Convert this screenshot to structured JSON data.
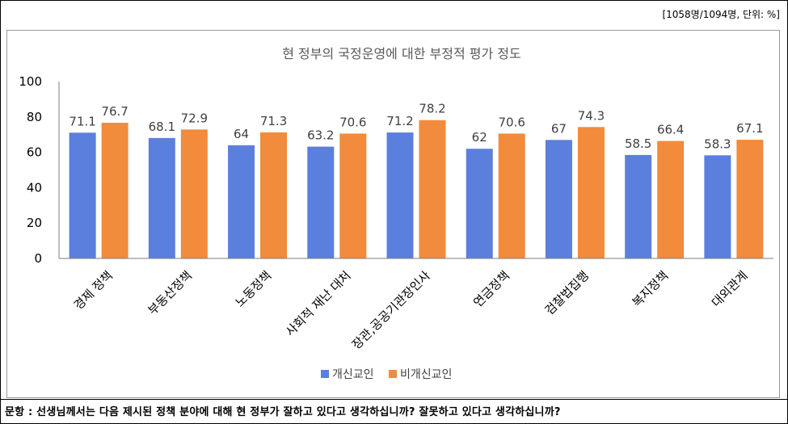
{
  "unit_note": "[1058명/1094명, 단위: %]",
  "question": "문항 : 선생님께서는 다음 제시된 정책 분야에 대해 현 정부가 잘하고 있다고 생각하십니까? 잘못하고 있다고 생각하십니까?",
  "colors": {
    "series1": "#5b7fdc",
    "series2": "#f28b3c",
    "axis": "#7f7f7f",
    "text": "#404040"
  },
  "chart_data": {
    "type": "bar",
    "title": "현 정부의 국정운영에 대한 부정적 평가  정도",
    "xlabel": "",
    "ylabel": "",
    "ylim": [
      0,
      100
    ],
    "yticks": [
      "0",
      "20",
      "40",
      "60",
      "80",
      "100"
    ],
    "grid": false,
    "legend_position": "bottom",
    "categories": [
      "경제 정책",
      "부동산정책",
      "노동정책",
      "사회적 재난 대처",
      "장관,공공기관장인사",
      "연금정책",
      "검찰법집행",
      "복지정책",
      "대외관계"
    ],
    "series": [
      {
        "name": "개신교인",
        "values": [
          71.1,
          68.1,
          64,
          63.2,
          71.2,
          62,
          67,
          58.5,
          58.3
        ],
        "labels": [
          "71.1",
          "68.1",
          "64",
          "63.2",
          "71.2",
          "62",
          "67",
          "58.5",
          "58.3"
        ]
      },
      {
        "name": "비개신교인",
        "values": [
          76.7,
          72.9,
          71.3,
          70.6,
          78.2,
          70.6,
          74.3,
          66.4,
          67.1
        ],
        "labels": [
          "76.7",
          "72.9",
          "71.3",
          "70.6",
          "78.2",
          "70.6",
          "74.3",
          "66.4",
          "67.1"
        ]
      }
    ]
  }
}
